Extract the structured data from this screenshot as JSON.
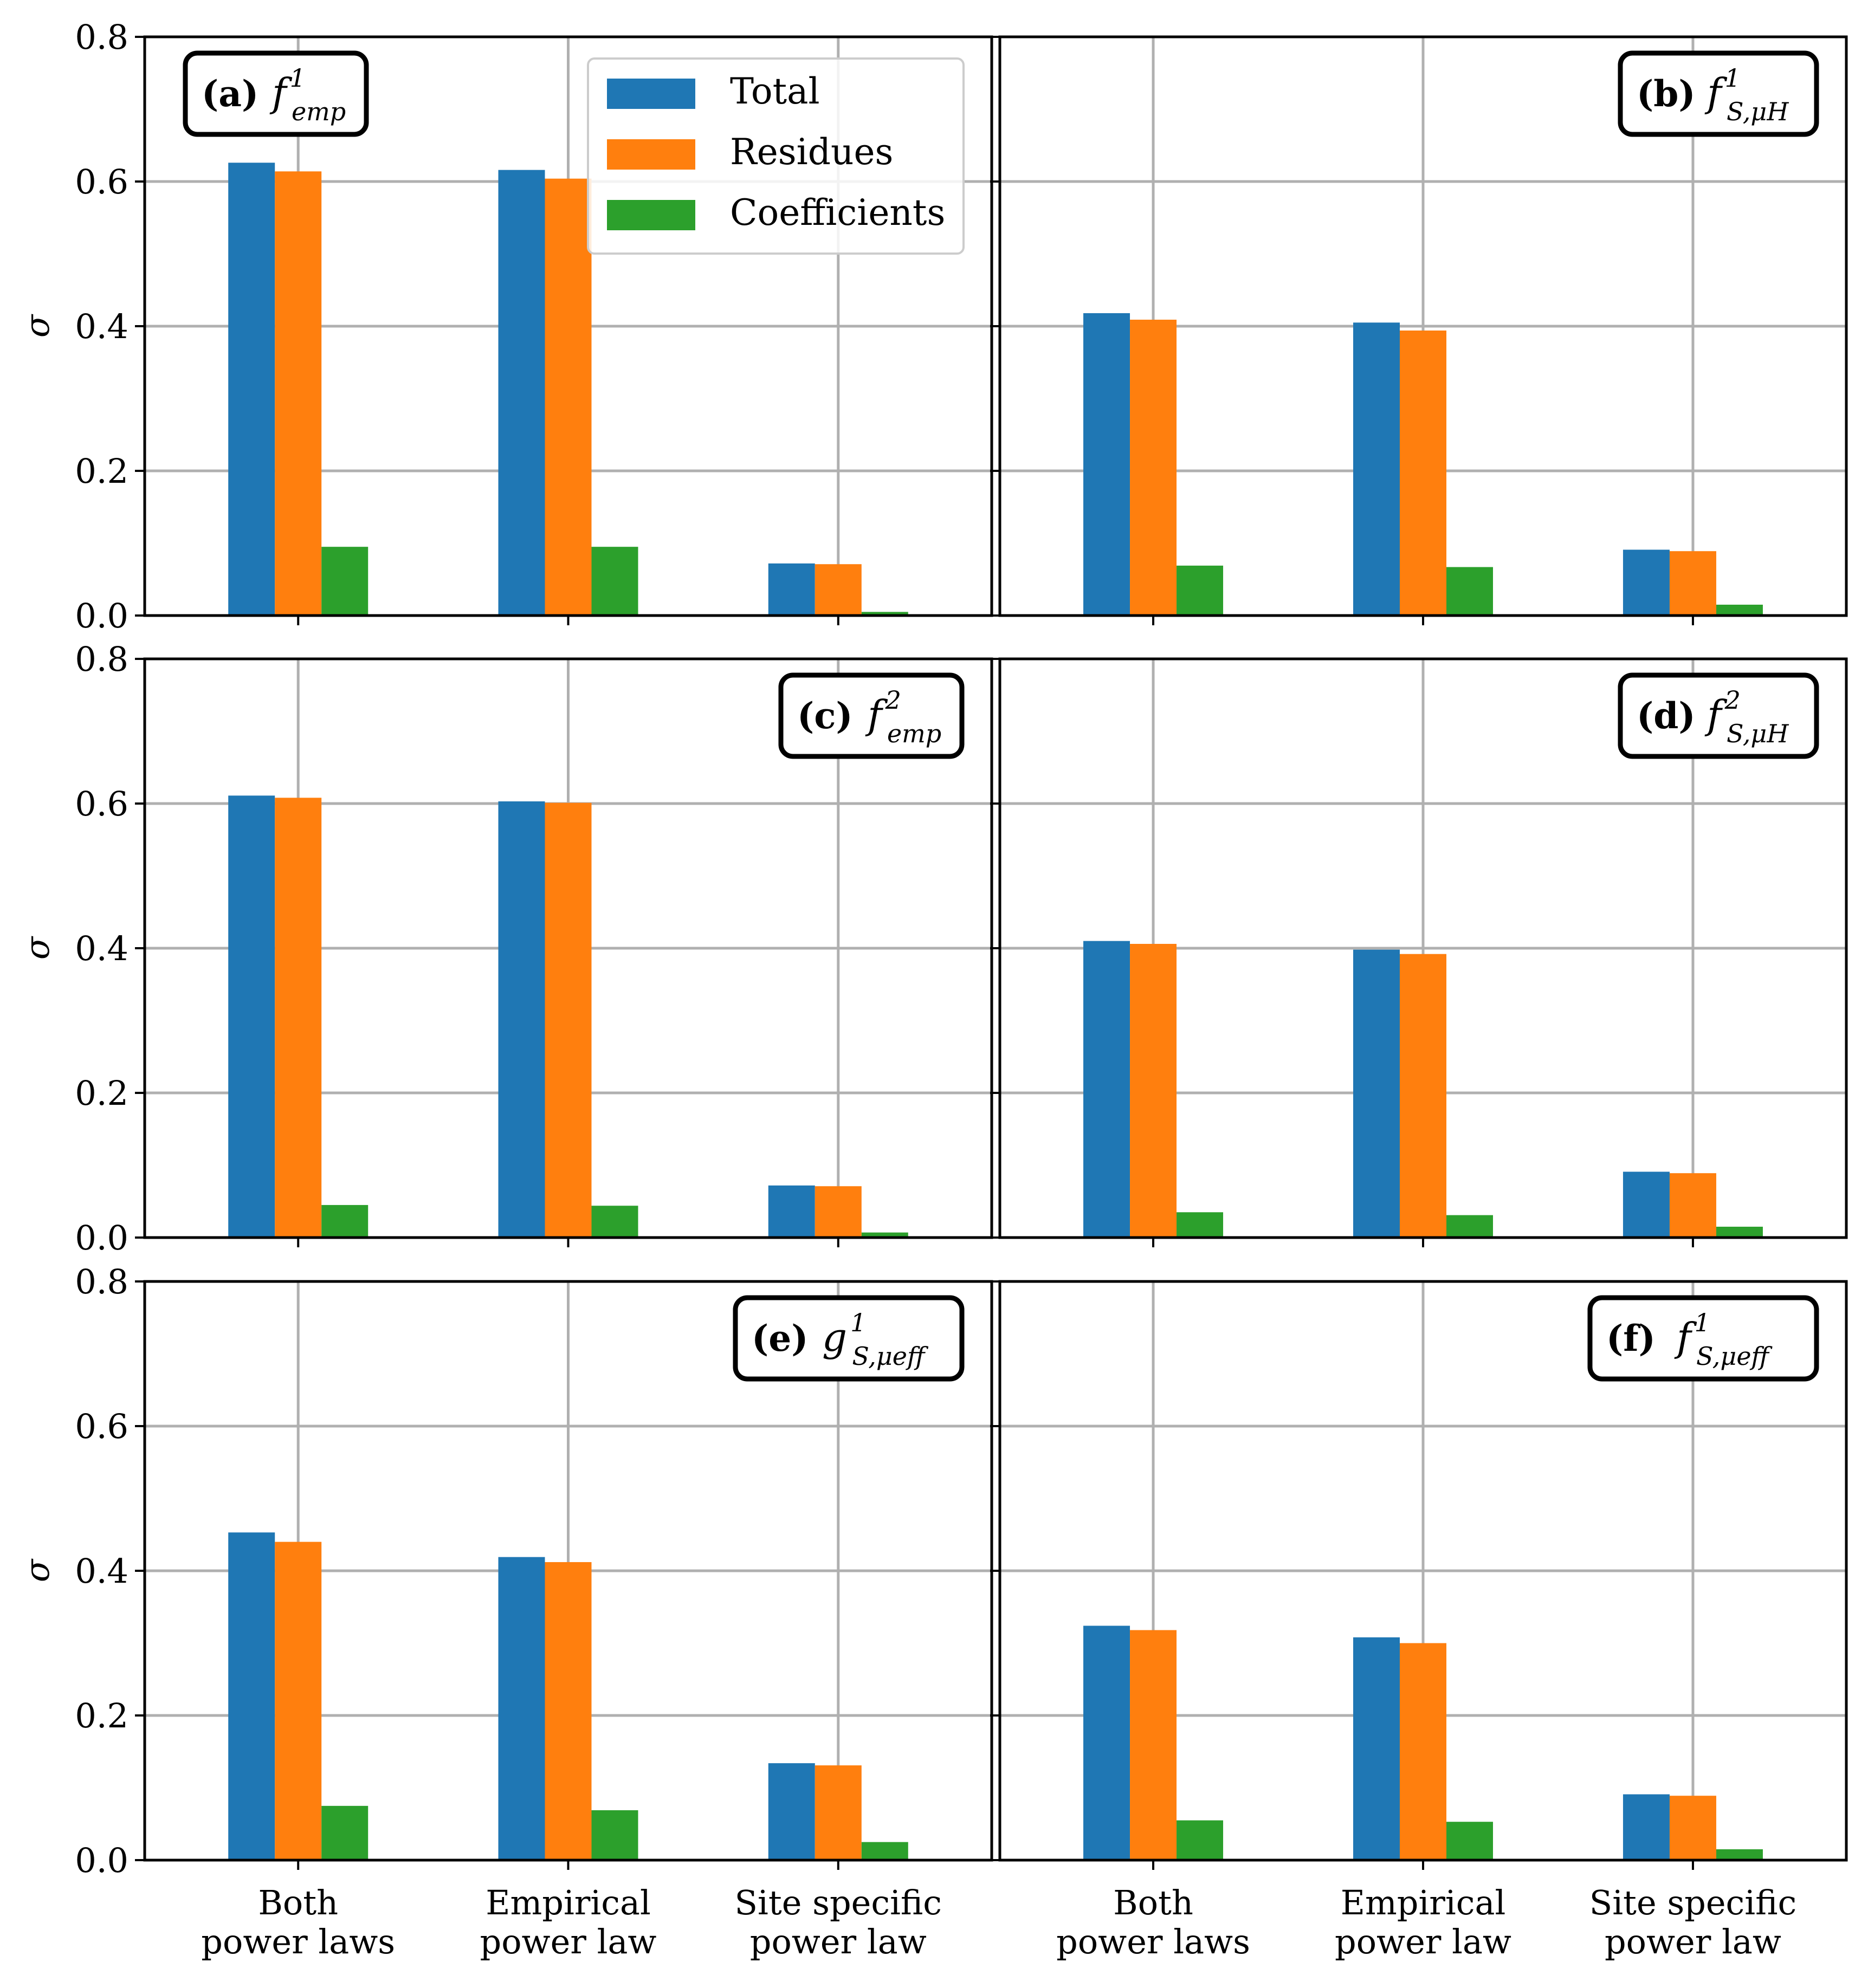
{
  "colors": {
    "Total": "#1f77b4",
    "Residues": "#ff7f0e",
    "Coefficients": "#2ca02c",
    "grid": "#b0b0b0"
  },
  "legend": {
    "placement": "top-right of panel (a)",
    "entries": [
      "Total",
      "Residues",
      "Coefficients"
    ]
  },
  "chart_data": [
    {
      "type": "bar",
      "panel_label": "(a)",
      "function": {
        "base": "f",
        "sup": "1",
        "sub": "emp"
      },
      "title_placement": "top-left",
      "categories": [
        "Both power laws",
        "Empirical power law",
        "Site specific power law"
      ],
      "category_lines": [
        [
          "Both",
          "power laws"
        ],
        [
          "Empirical",
          "power law"
        ],
        [
          "Site specific",
          "power law"
        ]
      ],
      "series": [
        {
          "name": "Total",
          "values": [
            0.626,
            0.616,
            0.072
          ]
        },
        {
          "name": "Residues",
          "values": [
            0.614,
            0.604,
            0.071
          ]
        },
        {
          "name": "Coefficients",
          "values": [
            0.095,
            0.095,
            0.005
          ]
        }
      ],
      "ylabel": "σ",
      "ylim": [
        0,
        0.8
      ],
      "yticks": [
        "0.0",
        "0.2",
        "0.4",
        "0.6",
        "0.8"
      ],
      "grid": true
    },
    {
      "type": "bar",
      "panel_label": "(b)",
      "function": {
        "base": "f",
        "sup": "1",
        "sub": "S,μH"
      },
      "title_placement": "top-right",
      "categories": [
        "Both power laws",
        "Empirical power law",
        "Site specific power law"
      ],
      "category_lines": [
        [
          "Both",
          "power laws"
        ],
        [
          "Empirical",
          "power law"
        ],
        [
          "Site specific",
          "power law"
        ]
      ],
      "series": [
        {
          "name": "Total",
          "values": [
            0.418,
            0.405,
            0.091
          ]
        },
        {
          "name": "Residues",
          "values": [
            0.409,
            0.394,
            0.089
          ]
        },
        {
          "name": "Coefficients",
          "values": [
            0.069,
            0.067,
            0.015
          ]
        }
      ],
      "ylabel": "",
      "ylim": [
        0,
        0.8
      ],
      "grid": true
    },
    {
      "type": "bar",
      "panel_label": "(c)",
      "function": {
        "base": "f",
        "sup": "2",
        "sub": "emp"
      },
      "title_placement": "top-right",
      "categories": [
        "Both power laws",
        "Empirical power law",
        "Site specific power law"
      ],
      "category_lines": [
        [
          "Both",
          "power laws"
        ],
        [
          "Empirical",
          "power law"
        ],
        [
          "Site specific",
          "power law"
        ]
      ],
      "series": [
        {
          "name": "Total",
          "values": [
            0.611,
            0.603,
            0.072
          ]
        },
        {
          "name": "Residues",
          "values": [
            0.608,
            0.601,
            0.071
          ]
        },
        {
          "name": "Coefficients",
          "values": [
            0.045,
            0.044,
            0.007
          ]
        }
      ],
      "ylabel": "σ",
      "ylim": [
        0,
        0.8
      ],
      "yticks": [
        "0.0",
        "0.2",
        "0.4",
        "0.6",
        "0.8"
      ],
      "grid": true
    },
    {
      "type": "bar",
      "panel_label": "(d)",
      "function": {
        "base": "f",
        "sup": "2",
        "sub": "S,μH"
      },
      "title_placement": "top-right",
      "categories": [
        "Both power laws",
        "Empirical power law",
        "Site specific power law"
      ],
      "category_lines": [
        [
          "Both",
          "power laws"
        ],
        [
          "Empirical",
          "power law"
        ],
        [
          "Site specific",
          "power law"
        ]
      ],
      "series": [
        {
          "name": "Total",
          "values": [
            0.41,
            0.398,
            0.091
          ]
        },
        {
          "name": "Residues",
          "values": [
            0.406,
            0.392,
            0.089
          ]
        },
        {
          "name": "Coefficients",
          "values": [
            0.035,
            0.031,
            0.015
          ]
        }
      ],
      "ylabel": "",
      "ylim": [
        0,
        0.8
      ],
      "grid": true
    },
    {
      "type": "bar",
      "panel_label": "(e)",
      "function": {
        "base": "g",
        "sup": "1",
        "sub": "S,μeff"
      },
      "title_placement": "top-right",
      "categories": [
        "Both power laws",
        "Empirical power law",
        "Site specific power law"
      ],
      "category_lines": [
        [
          "Both",
          "power laws"
        ],
        [
          "Empirical",
          "power law"
        ],
        [
          "Site specific",
          "power law"
        ]
      ],
      "series": [
        {
          "name": "Total",
          "values": [
            0.453,
            0.419,
            0.134
          ]
        },
        {
          "name": "Residues",
          "values": [
            0.44,
            0.412,
            0.131
          ]
        },
        {
          "name": "Coefficients",
          "values": [
            0.075,
            0.069,
            0.025
          ]
        }
      ],
      "ylabel": "σ",
      "ylim": [
        0,
        0.8
      ],
      "yticks": [
        "0.0",
        "0.2",
        "0.4",
        "0.6",
        "0.8"
      ],
      "grid": true
    },
    {
      "type": "bar",
      "panel_label": "(f)",
      "function": {
        "base": "f",
        "sup": "1",
        "sub": "S,μeff"
      },
      "title_placement": "top-right",
      "categories": [
        "Both power laws",
        "Empirical power law",
        "Site specific power law"
      ],
      "category_lines": [
        [
          "Both",
          "power laws"
        ],
        [
          "Empirical",
          "power law"
        ],
        [
          "Site specific",
          "power law"
        ]
      ],
      "series": [
        {
          "name": "Total",
          "values": [
            0.324,
            0.308,
            0.091
          ]
        },
        {
          "name": "Residues",
          "values": [
            0.318,
            0.3,
            0.089
          ]
        },
        {
          "name": "Coefficients",
          "values": [
            0.055,
            0.053,
            0.015
          ]
        }
      ],
      "ylabel": "",
      "ylim": [
        0,
        0.8
      ],
      "grid": true
    }
  ]
}
